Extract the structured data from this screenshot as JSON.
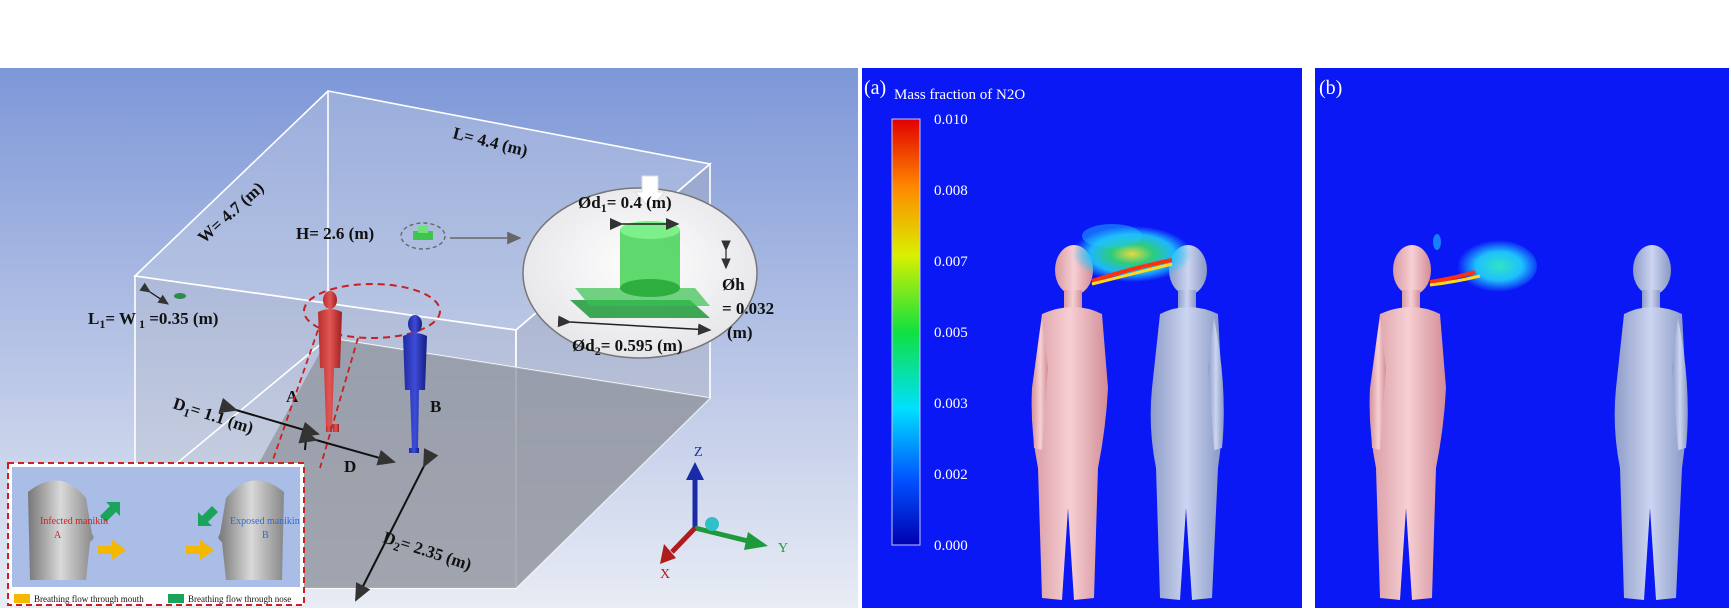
{
  "room": {
    "length_label": "L= 4.4 (m)",
    "width_label": "W= 4.7 (m)",
    "height_label": "H= 2.6 (m)",
    "outlet_label": "L",
    "outlet_label_sub": "1",
    "outlet_label_mid": "= W",
    "outlet_label_sub2": " 1",
    "outlet_label_end": " =0.35 (m)",
    "d1_label": "D",
    "d1_sub": "1",
    "d1_end": "= 1.1 (m)",
    "d_label": "D",
    "d2_label": "D",
    "d2_sub": "2",
    "d2_end": "= 2.35 (m)",
    "manikin_a": "A",
    "manikin_b": "B"
  },
  "diffuser": {
    "d1_prefix": "Ød",
    "d1_sub": "1",
    "d1_end": "= 0.4 (m)",
    "h_label": "Øh",
    "h_value": "= 0.032",
    "h_unit": "(m)",
    "d2_prefix": "Ød",
    "d2_sub": "2",
    "d2_end": "= 0.595 (m)"
  },
  "axes": {
    "z": "Z",
    "y": "Y",
    "x": "X"
  },
  "inset": {
    "infected_line1": "Infected manikin",
    "infected_line2": "A",
    "exposed_line1": "Exposed manikin",
    "exposed_line2": "B",
    "legend_mouth": "Breathing flow through mouth",
    "legend_nose": "Breathing flow through nose",
    "mouth_color": "#f5b800",
    "nose_color": "#1aa35a"
  },
  "contour": {
    "panel_a_label": "(a)",
    "panel_b_label": "(b)",
    "colorbar_title": "Mass fraction of N2O",
    "ticks": [
      "0.010",
      "0.008",
      "0.007",
      "0.005",
      "0.003",
      "0.002",
      "0.000"
    ],
    "background_color": "#0a18f5",
    "infected_color": "#f2c4c8",
    "exposed_color": "#b8c4e6"
  }
}
